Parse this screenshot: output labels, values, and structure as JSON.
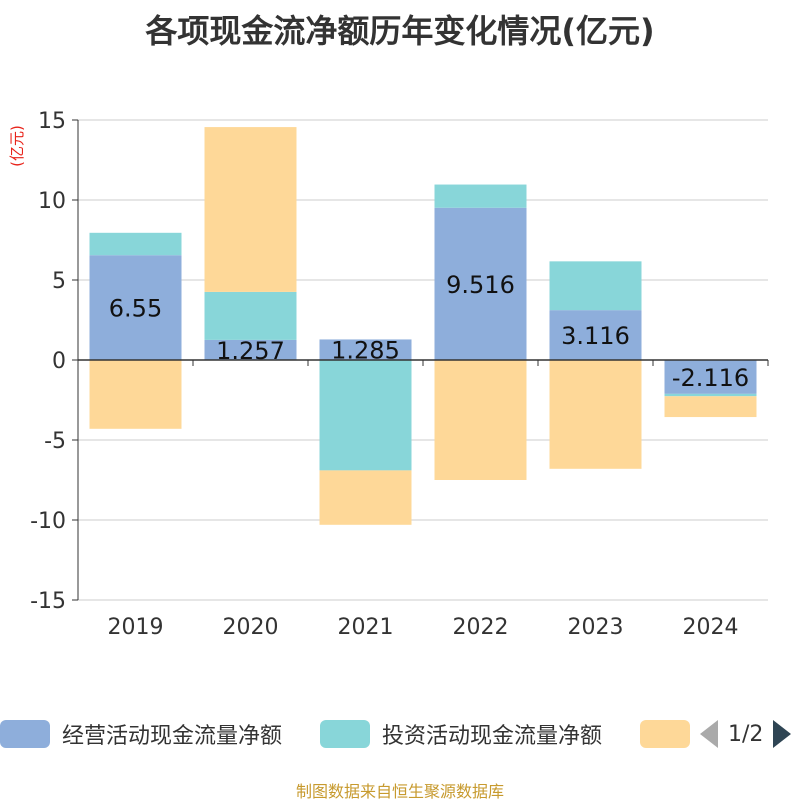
{
  "title": "各项现金流净额历年变化情况(亿元)",
  "source_note": "制图数据来自恒生聚源数据库",
  "legend": {
    "items": [
      {
        "label": "经营活动现金流量净额",
        "color": "#8eaedb"
      },
      {
        "label": "投资活动现金流量净额",
        "color": "#88d6d9"
      },
      {
        "label": "",
        "color": "#fed898"
      }
    ],
    "pager": "1/2"
  },
  "chart_data": {
    "type": "bar",
    "stacked": true,
    "categories": [
      "2019",
      "2020",
      "2021",
      "2022",
      "2023",
      "2024"
    ],
    "ylabel": "(亿元)",
    "ylim": [
      -15,
      15
    ],
    "yticks": [
      15,
      10,
      5,
      0,
      -5,
      -10,
      -15
    ],
    "grid": true,
    "legend_position": "bottom",
    "series": [
      {
        "name": "经营活动现金流量净额",
        "color": "#8eaedb",
        "values": [
          6.55,
          1.257,
          1.285,
          9.516,
          3.116,
          -2.116
        ],
        "labels": [
          "6.55",
          "1.257",
          "1.285",
          "9.516",
          "3.116",
          "-2.116"
        ]
      },
      {
        "name": "投资活动现金流量净额",
        "color": "#88d6d9",
        "values": [
          1.4,
          3.0,
          -6.9,
          1.45,
          3.05,
          -0.15
        ]
      },
      {
        "color": "#fed898",
        "values": [
          -4.3,
          10.3,
          -3.4,
          -7.5,
          -6.8,
          -1.3
        ]
      }
    ]
  }
}
